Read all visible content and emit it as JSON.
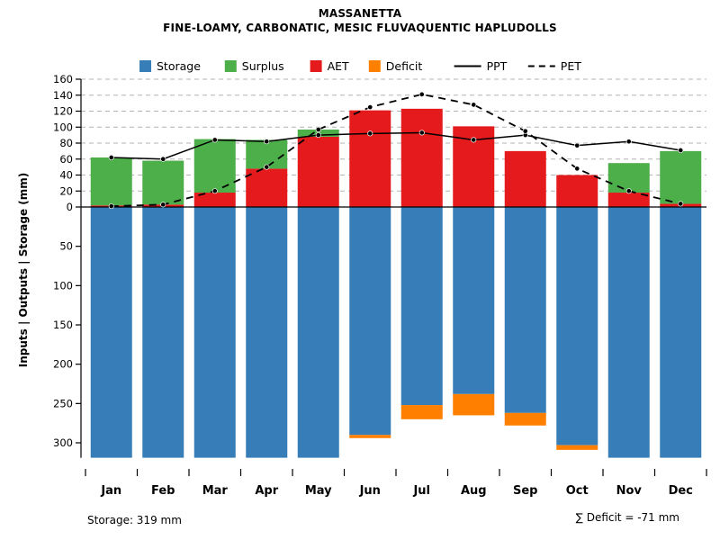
{
  "footer": {
    "storage_note": "Storage: 319 mm",
    "deficit_note": "∑ Deficit = -71 mm"
  },
  "chart_data": {
    "type": "bar",
    "title": "MASSANETTA",
    "subtitle": "FINE-LOAMY, CARBONATIC, MESIC FLUVAQUENTIC HAPLUDOLLS",
    "ylabel": "Inputs | Outputs | Storage    (mm)",
    "legend_position": "top",
    "grid": "dashed-upper-only",
    "categories": [
      "Jan",
      "Feb",
      "Mar",
      "Apr",
      "May",
      "Jun",
      "Jul",
      "Aug",
      "Sep",
      "Oct",
      "Nov",
      "Dec"
    ],
    "axes": {
      "upper_ticks": [
        0,
        20,
        40,
        60,
        80,
        100,
        120,
        140,
        160
      ],
      "upper_range": [
        0,
        160
      ],
      "lower_ticks": [
        50,
        100,
        150,
        200,
        250,
        300
      ],
      "lower_range": [
        0,
        319
      ]
    },
    "legend": [
      {
        "label": "Storage",
        "kind": "box",
        "color": "#377EB8"
      },
      {
        "label": "Surplus",
        "kind": "box",
        "color": "#4DAF4A"
      },
      {
        "label": "AET",
        "kind": "box",
        "color": "#E41A1C"
      },
      {
        "label": "Deficit",
        "kind": "box",
        "color": "#FF7F00"
      },
      {
        "label": "PPT",
        "kind": "line",
        "dash": false
      },
      {
        "label": "PET",
        "kind": "line",
        "dash": true
      }
    ],
    "series": [
      {
        "name": "Storage",
        "render": "bar-down",
        "color": "#377EB8",
        "values": [
          319,
          319,
          319,
          319,
          319,
          290,
          252,
          238,
          262,
          303,
          319,
          319
        ]
      },
      {
        "name": "Deficit",
        "render": "bar-down-append",
        "color": "#FF7F00",
        "values": [
          0,
          0,
          0,
          0,
          0,
          4,
          18,
          27,
          16,
          6,
          0,
          0
        ]
      },
      {
        "name": "AET",
        "render": "bar-up",
        "color": "#E41A1C",
        "values": [
          2,
          3,
          18,
          48,
          88,
          121,
          123,
          101,
          70,
          40,
          18,
          4
        ]
      },
      {
        "name": "Surplus",
        "render": "bar-up-stacked",
        "color": "#4DAF4A",
        "values": [
          60,
          55,
          67,
          36,
          9,
          0,
          0,
          0,
          0,
          0,
          37,
          66
        ]
      },
      {
        "name": "PPT",
        "render": "line",
        "style": "solid",
        "color": "#000000",
        "values": [
          62,
          60,
          84,
          82,
          90,
          92,
          93,
          84,
          90,
          77,
          82,
          71
        ]
      },
      {
        "name": "PET",
        "render": "line",
        "style": "dashed",
        "color": "#000000",
        "values": [
          1,
          3,
          20,
          50,
          97,
          125,
          141,
          128,
          95,
          48,
          20,
          4
        ]
      }
    ],
    "storage_capacity_mm": 319,
    "deficit_sum_mm": -71
  }
}
